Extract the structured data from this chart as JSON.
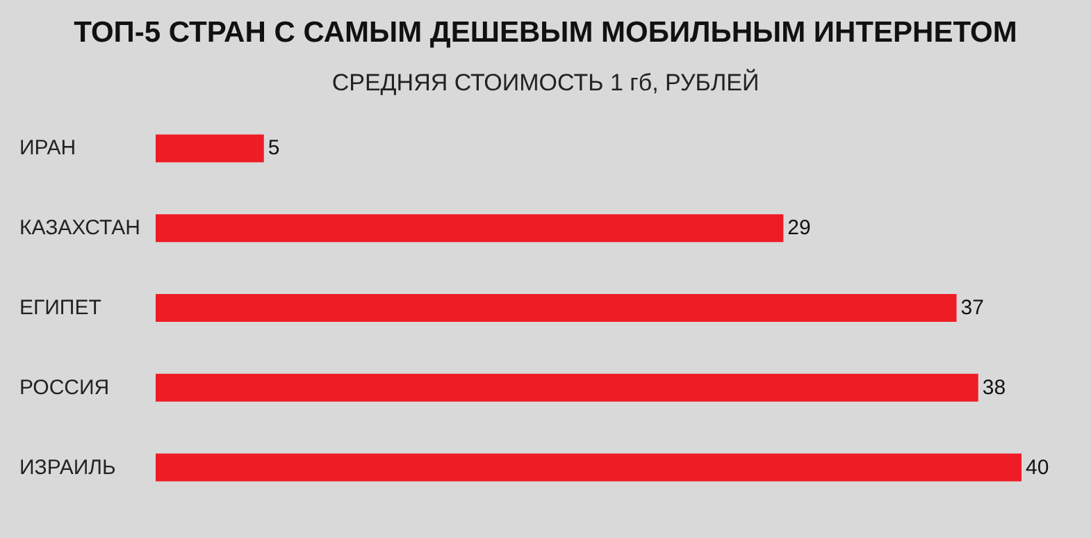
{
  "chart_data": {
    "type": "bar",
    "orientation": "horizontal",
    "title": "ТОП-5 СТРАН С САМЫМ ДЕШЕВЫМ МОБИЛЬНЫМ ИНТЕРНЕТОМ",
    "subtitle": "СРЕДНЯЯ СТОИМОСТЬ 1 гб, РУБЛЕЙ",
    "categories": [
      "ИРАН",
      "КАЗАХСТАН",
      "ЕГИПЕТ",
      "РОССИЯ",
      "ИЗРАИЛЬ"
    ],
    "values": [
      5,
      29,
      37,
      38,
      40
    ],
    "color": "#ee1c25",
    "data_labels": true
  }
}
